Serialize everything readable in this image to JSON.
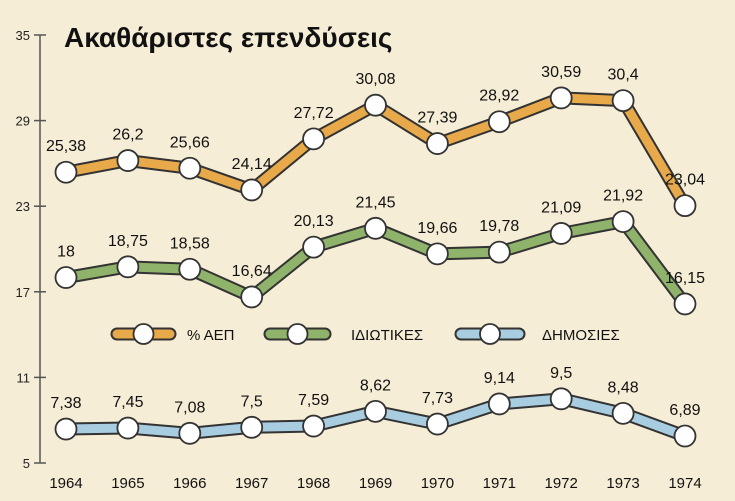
{
  "chart_data": {
    "type": "line",
    "title": "Ακαθάριστες επενδύσεις",
    "x": [
      "1964",
      "1965",
      "1966",
      "1967",
      "1968",
      "1969",
      "1970",
      "1971",
      "1972",
      "1973",
      "1974"
    ],
    "series": [
      {
        "name": "% ΑΕΠ",
        "color": "#e8a94a",
        "values": [
          25.38,
          26.2,
          25.66,
          24.14,
          27.72,
          30.08,
          27.39,
          28.92,
          30.59,
          30.4,
          23.04
        ],
        "labels": [
          "25,38",
          "26,2",
          "25,66",
          "24,14",
          "27,72",
          "30,08",
          "27,39",
          "28,92",
          "30,59",
          "30,4",
          "23,04"
        ]
      },
      {
        "name": "ΙΔΙΩΤΙΚΕΣ",
        "color": "#8fb36a",
        "values": [
          18,
          18.75,
          18.58,
          16.64,
          20.13,
          21.45,
          19.66,
          19.78,
          21.09,
          21.92,
          16.15
        ],
        "labels": [
          "18",
          "18,75",
          "18,58",
          "16,64",
          "20,13",
          "21,45",
          "19,66",
          "19,78",
          "21,09",
          "21,92",
          "16,15"
        ]
      },
      {
        "name": "ΔΗΜΟΣΙΕΣ",
        "color": "#a9cde0",
        "values": [
          7.38,
          7.45,
          7.08,
          7.5,
          7.59,
          8.62,
          7.73,
          9.14,
          9.5,
          8.48,
          6.89
        ],
        "labels": [
          "7,38",
          "7,45",
          "7,08",
          "7,5",
          "7,59",
          "8,62",
          "7,73",
          "9,14",
          "9,5",
          "8,48",
          "6,89"
        ]
      }
    ],
    "yticks": [
      "35",
      "29",
      "23",
      "17",
      "11",
      "5"
    ],
    "ytick_values": [
      35,
      29,
      23,
      17,
      11,
      5
    ],
    "ylim": [
      5,
      35
    ],
    "grid": false,
    "legend_position": "middle-right"
  }
}
